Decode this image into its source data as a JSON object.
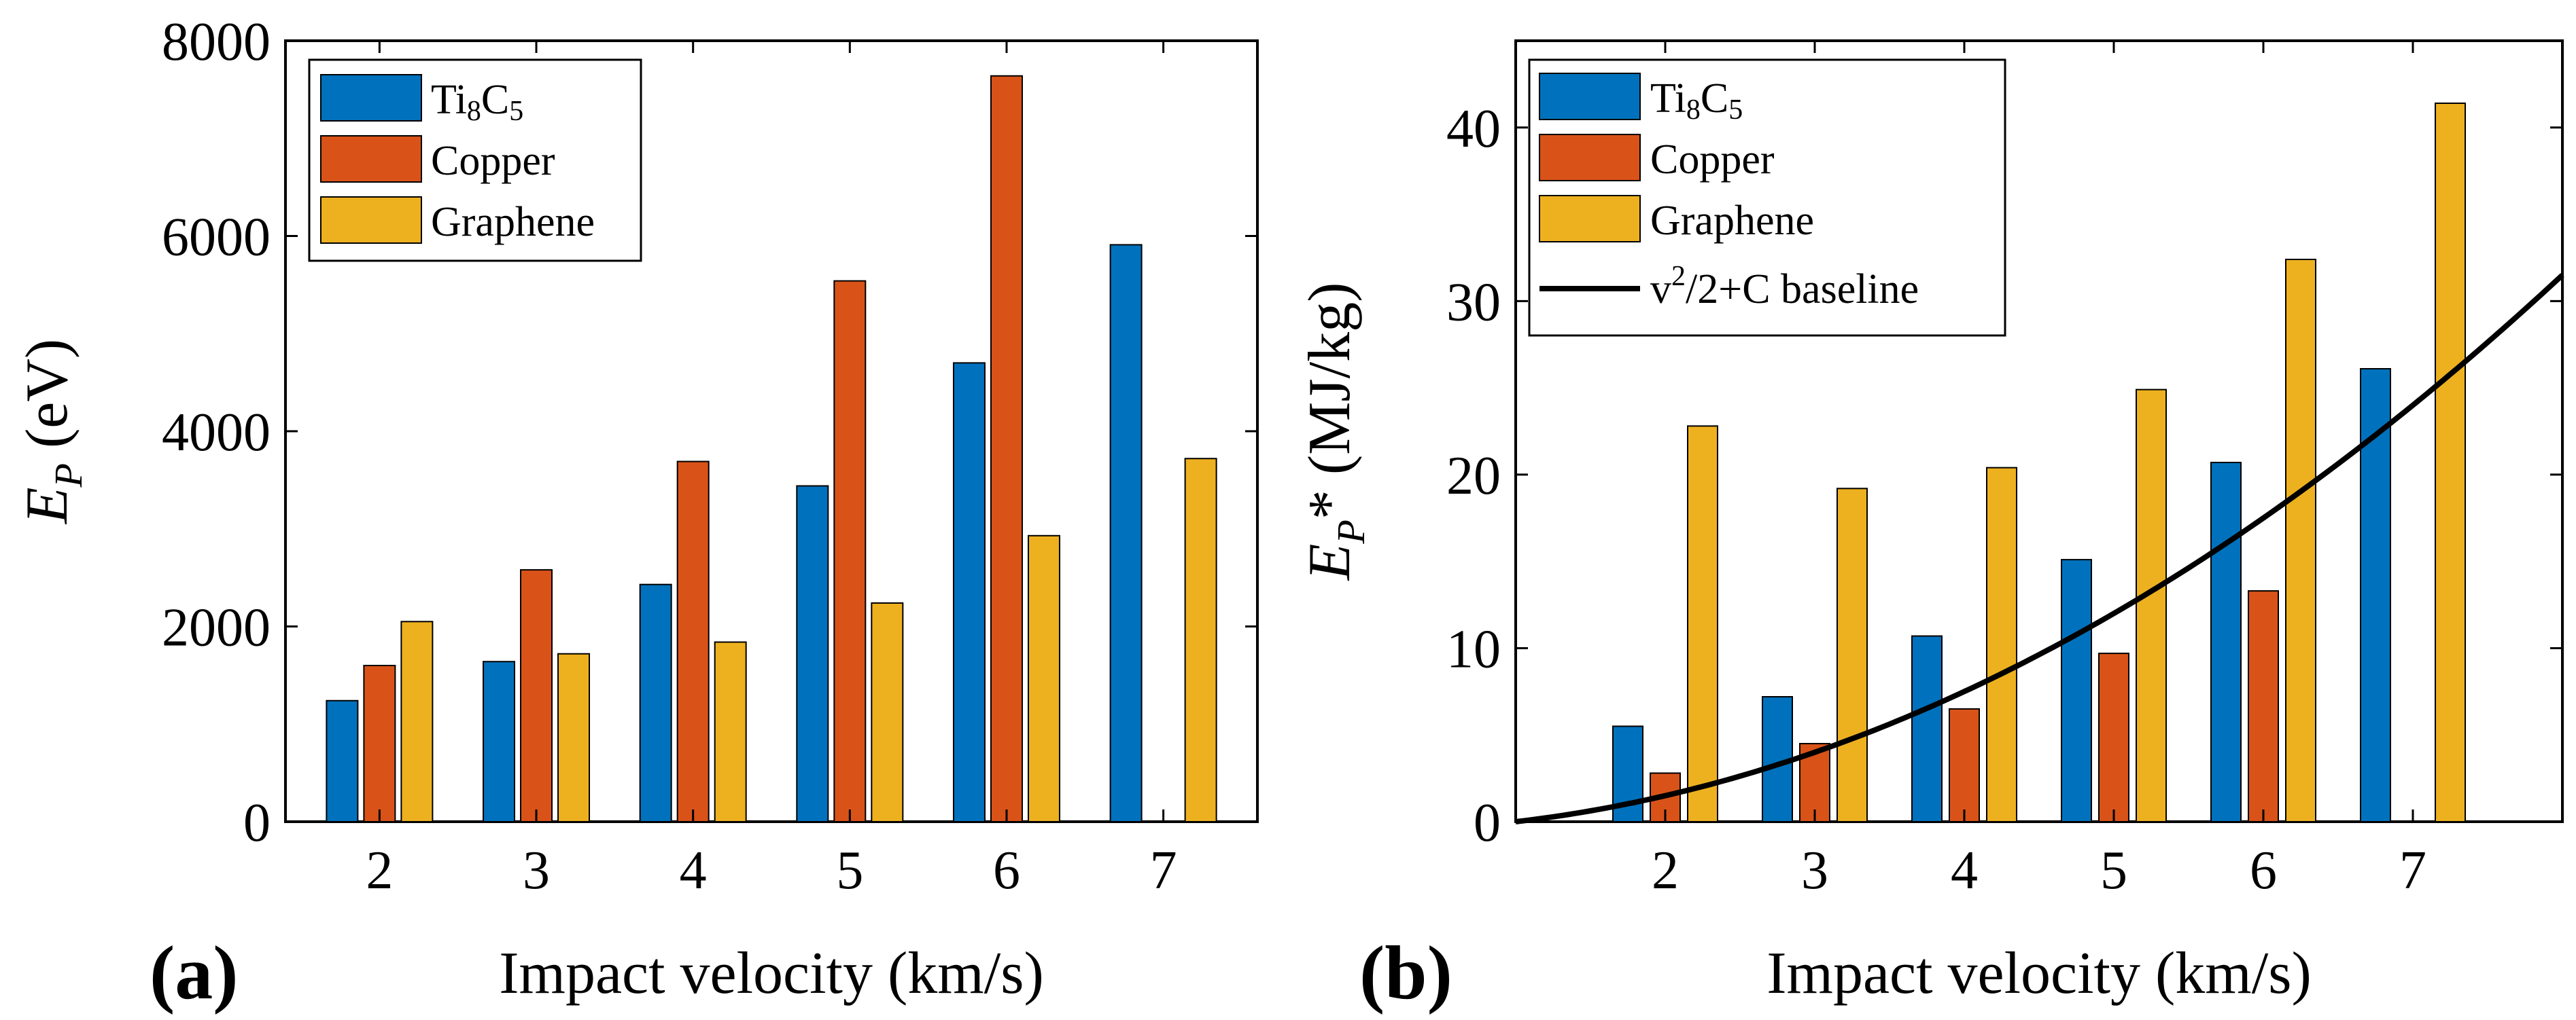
{
  "colors": {
    "ti8c5": "#0072BD",
    "copper": "#D95319",
    "graphene": "#EDB120",
    "baseline": "#000000"
  },
  "chart_data": [
    {
      "type": "bar",
      "panel_label": "(a)",
      "xlabel": "Impact velocity (km/s)",
      "ylabel_main": "E",
      "ylabel_sub": "P",
      "ylabel_unit": "(eV)",
      "categories": [
        "2",
        "3",
        "4",
        "5",
        "6",
        "7"
      ],
      "ylim": [
        0,
        8000
      ],
      "yticks": [
        0,
        2000,
        4000,
        6000,
        8000
      ],
      "legend_position": "top-left",
      "series": [
        {
          "name": "Ti",
          "name_sub1": "8",
          "name_mid": "C",
          "name_sub2": "5",
          "color_key": "ti8c5",
          "values": [
            1240,
            1640,
            2430,
            3440,
            4700,
            5910
          ]
        },
        {
          "name": "Copper",
          "color_key": "copper",
          "values": [
            1600,
            2580,
            3690,
            5540,
            7640,
            null
          ]
        },
        {
          "name": "Graphene",
          "color_key": "graphene",
          "values": [
            2050,
            1720,
            1840,
            2240,
            2930,
            3720
          ]
        }
      ]
    },
    {
      "type": "bar",
      "panel_label": "(b)",
      "xlabel": "Impact velocity (km/s)",
      "ylabel_main": "E",
      "ylabel_sub": "P",
      "ylabel_unit": "* (MJ/kg)",
      "categories": [
        "2",
        "3",
        "4",
        "5",
        "6",
        "7"
      ],
      "x_range": [
        1,
        8
      ],
      "ylim": [
        0,
        45
      ],
      "yticks": [
        0,
        10,
        20,
        30,
        40
      ],
      "legend_position": "top-left",
      "series": [
        {
          "name": "Ti",
          "name_sub1": "8",
          "name_mid": "C",
          "name_sub2": "5",
          "color_key": "ti8c5",
          "values": [
            5.5,
            7.2,
            10.7,
            15.1,
            20.7,
            26.1
          ]
        },
        {
          "name": "Copper",
          "color_key": "copper",
          "values": [
            2.8,
            4.5,
            6.5,
            9.7,
            13.3,
            null
          ]
        },
        {
          "name": "Graphene",
          "color_key": "graphene",
          "values": [
            22.8,
            19.2,
            20.4,
            24.9,
            32.4,
            41.4
          ]
        }
      ],
      "baseline": {
        "name_pre": "v",
        "name_sup": "2",
        "name_post": "/2+C baseline",
        "formula": "y = v^2/2 - 0.5",
        "x": [
          1,
          2,
          3,
          4,
          5,
          6,
          7,
          8
        ],
        "y": [
          0,
          1.5,
          4,
          7.5,
          12,
          17.5,
          24,
          31.5
        ]
      }
    }
  ]
}
